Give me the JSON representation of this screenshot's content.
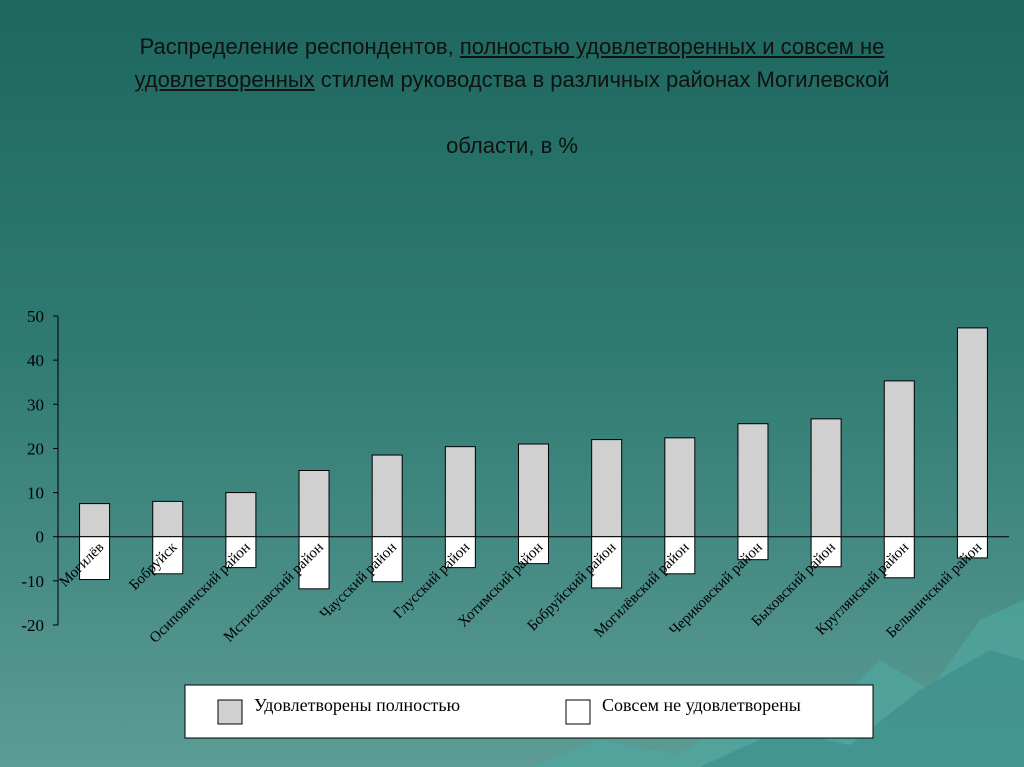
{
  "chart_data": {
    "type": "bar",
    "title": [
      "Распределение респондентов,",
      "полностью удовлетворенных и совсем не удовлетворенных",
      "стилем руководства в различных районах Могилевской",
      "области, в %"
    ],
    "categories": [
      "Могилёв",
      "Бобруйск",
      "Осиповичский район",
      "Мстиславский район",
      "Чаусский район",
      "Глусский район",
      "Хотимский район",
      "Бобруйский район",
      "Могилёвский район",
      "Чериковский район",
      "Быховский район",
      "Круглянский район",
      "Белыничский район"
    ],
    "series": [
      {
        "name": "Удовлетворены полностью",
        "color": "#d0d0d0",
        "values": [
          7.5,
          8,
          10,
          15,
          18.5,
          20.4,
          21,
          22,
          22.4,
          25.6,
          26.7,
          35.3,
          47.3
        ]
      },
      {
        "name": "Совсем не удовлетворены",
        "color": "#ffffff",
        "values": [
          -9.7,
          -8.4,
          -7,
          -11.8,
          -10.2,
          -7,
          -6.1,
          -11.6,
          -8.4,
          -5.2,
          -6.8,
          -9.3,
          -4.8
        ]
      }
    ],
    "ylim": [
      -20,
      50
    ],
    "yticks": [
      -20,
      -10,
      0,
      10,
      20,
      30,
      40,
      50
    ]
  }
}
